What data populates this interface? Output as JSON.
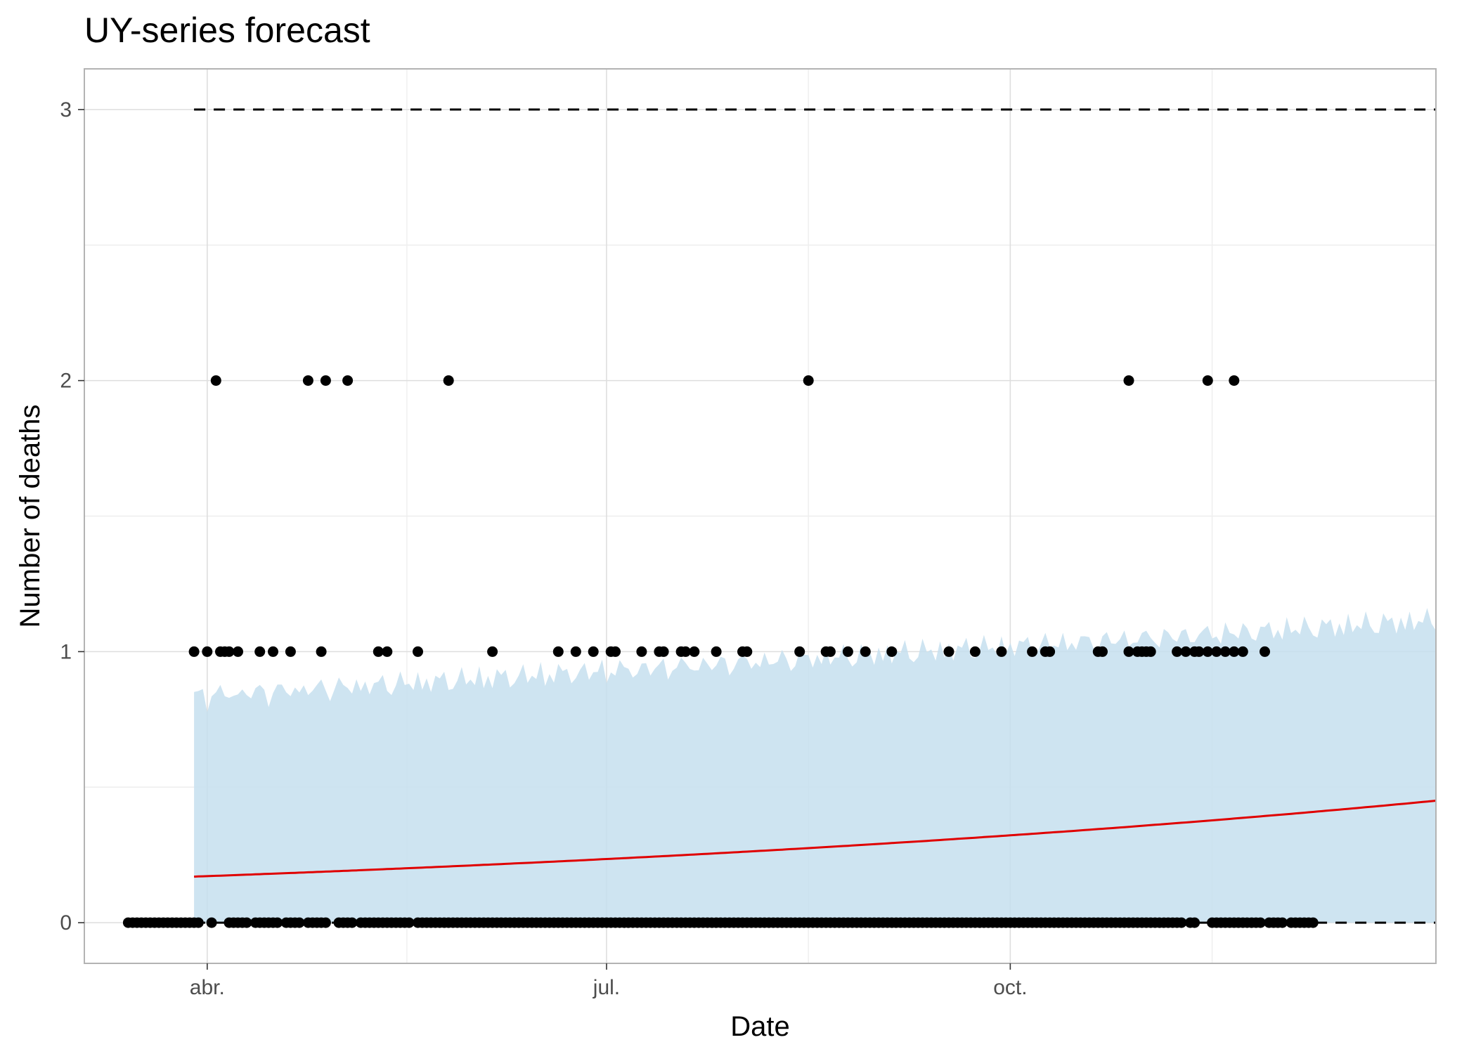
{
  "chart_data": {
    "type": "scatter",
    "title": "UY-series forecast",
    "xlabel": "Date",
    "ylabel": "Number of deaths",
    "x_ticks": [
      {
        "date": "2020-04-01",
        "label": "abr."
      },
      {
        "date": "2020-07-01",
        "label": "jul."
      },
      {
        "date": "2020-10-01",
        "label": "oct."
      }
    ],
    "y_ticks": [
      0,
      1,
      2,
      3
    ],
    "xlim": [
      "2020-03-04",
      "2021-01-06"
    ],
    "ylim": [
      -0.15,
      3.15
    ],
    "grid": true,
    "colors": {
      "points": "#000000",
      "forecast_line": "#e00000",
      "interval_fill": "#c5dfee",
      "bounds": "#000000",
      "panel_border": "#b3b3b3",
      "grid_major": "#dedede",
      "grid_minor": "#eeeeee"
    },
    "observed": {
      "zeros_dense_range": [
        "2020-03-14",
        "2020-03-30"
      ],
      "zero_dates": [
        "2020-04-02",
        "2020-04-06",
        "2020-04-07",
        "2020-04-08",
        "2020-04-09",
        "2020-04-10",
        "2020-04-12",
        "2020-04-13",
        "2020-04-14",
        "2020-04-15",
        "2020-04-16",
        "2020-04-17",
        "2020-04-19",
        "2020-04-20",
        "2020-04-21",
        "2020-04-22",
        "2020-04-24",
        "2020-04-25",
        "2020-04-26",
        "2020-04-27",
        "2020-04-28",
        "2020-05-01",
        "2020-05-02",
        "2020-05-03",
        "2020-05-04",
        "2020-05-06",
        "2020-05-07",
        "2020-05-08",
        "2020-05-09",
        "2020-05-10",
        "2020-05-11",
        "2020-05-12",
        "2020-05-13",
        "2020-05-14",
        "2020-05-15",
        "2020-05-16",
        "2020-05-17",
        "2020-05-19",
        "2020-05-20",
        "2020-05-21",
        "2020-05-22",
        "2020-05-23",
        "2020-05-24",
        "2020-05-25",
        "2020-05-26",
        "2020-05-27",
        "2020-05-28",
        "2020-05-29",
        "2020-05-30",
        "2020-05-31",
        "2020-06-01",
        "2020-06-02",
        "2020-06-03",
        "2020-06-04",
        "2020-06-05",
        "2020-06-06",
        "2020-06-07",
        "2020-06-08",
        "2020-06-09",
        "2020-06-10",
        "2020-06-11",
        "2020-06-12",
        "2020-06-13",
        "2020-06-14",
        "2020-06-15",
        "2020-06-16",
        "2020-06-17",
        "2020-06-18",
        "2020-06-19",
        "2020-06-20",
        "2020-06-21",
        "2020-06-22",
        "2020-06-23",
        "2020-06-24",
        "2020-06-25",
        "2020-06-26",
        "2020-06-27",
        "2020-06-28",
        "2020-06-29",
        "2020-06-30",
        "2020-07-01",
        "2020-07-02",
        "2020-07-03",
        "2020-07-04",
        "2020-07-05",
        "2020-07-06",
        "2020-07-07",
        "2020-07-08",
        "2020-07-09",
        "2020-07-10",
        "2020-07-11",
        "2020-07-12",
        "2020-07-13",
        "2020-07-14",
        "2020-07-15",
        "2020-07-16",
        "2020-07-17",
        "2020-07-18",
        "2020-07-19",
        "2020-07-20",
        "2020-07-21",
        "2020-07-22",
        "2020-07-23",
        "2020-07-24",
        "2020-07-25",
        "2020-07-26",
        "2020-07-27",
        "2020-07-28",
        "2020-07-29",
        "2020-07-30",
        "2020-07-31",
        "2020-08-01",
        "2020-08-02",
        "2020-08-03",
        "2020-08-04",
        "2020-08-05",
        "2020-08-06",
        "2020-08-07",
        "2020-08-08",
        "2020-08-09",
        "2020-08-10",
        "2020-08-11",
        "2020-08-12",
        "2020-08-13",
        "2020-08-14",
        "2020-08-15",
        "2020-08-16",
        "2020-08-17",
        "2020-08-18",
        "2020-08-19",
        "2020-08-20",
        "2020-08-21",
        "2020-08-22",
        "2020-08-23",
        "2020-08-24",
        "2020-08-25",
        "2020-08-26",
        "2020-08-27",
        "2020-08-28",
        "2020-08-29",
        "2020-08-30",
        "2020-08-31",
        "2020-09-01",
        "2020-09-02",
        "2020-09-03",
        "2020-09-04",
        "2020-09-05",
        "2020-09-06",
        "2020-09-07",
        "2020-09-08",
        "2020-09-09",
        "2020-09-10",
        "2020-09-11",
        "2020-09-12",
        "2020-09-13",
        "2020-09-14",
        "2020-09-15",
        "2020-09-16",
        "2020-09-17",
        "2020-09-18",
        "2020-09-19",
        "2020-09-20",
        "2020-09-21",
        "2020-09-22",
        "2020-09-23",
        "2020-09-24",
        "2020-09-25",
        "2020-09-26",
        "2020-09-27",
        "2020-09-28",
        "2020-09-29",
        "2020-09-30",
        "2020-10-01",
        "2020-10-02",
        "2020-10-03",
        "2020-10-04",
        "2020-10-05",
        "2020-10-06",
        "2020-10-07",
        "2020-10-08",
        "2020-10-09",
        "2020-10-10",
        "2020-10-11",
        "2020-10-12",
        "2020-10-13",
        "2020-10-14",
        "2020-10-15",
        "2020-10-16",
        "2020-10-17",
        "2020-10-18",
        "2020-10-19",
        "2020-10-20",
        "2020-10-21",
        "2020-10-22",
        "2020-10-23",
        "2020-10-24",
        "2020-10-25",
        "2020-10-26",
        "2020-10-27",
        "2020-10-28",
        "2020-10-29",
        "2020-10-30",
        "2020-10-31",
        "2020-11-01",
        "2020-11-02",
        "2020-11-03",
        "2020-11-04",
        "2020-11-05",
        "2020-11-06",
        "2020-11-07",
        "2020-11-08",
        "2020-11-09",
        "2020-11-11",
        "2020-11-12",
        "2020-11-16",
        "2020-11-17",
        "2020-11-18",
        "2020-11-19",
        "2020-11-20",
        "2020-11-21",
        "2020-11-22",
        "2020-11-23",
        "2020-11-24",
        "2020-11-25",
        "2020-11-26",
        "2020-11-27",
        "2020-11-29",
        "2020-11-30",
        "2020-12-01",
        "2020-12-02",
        "2020-12-04",
        "2020-12-05",
        "2020-12-06",
        "2020-12-07",
        "2020-12-08",
        "2020-12-09"
      ],
      "one_dates": [
        "2020-03-29",
        "2020-04-01",
        "2020-04-04",
        "2020-04-05",
        "2020-04-06",
        "2020-04-08",
        "2020-04-13",
        "2020-04-16",
        "2020-04-20",
        "2020-04-27",
        "2020-05-10",
        "2020-05-12",
        "2020-05-19",
        "2020-06-05",
        "2020-06-20",
        "2020-06-24",
        "2020-06-28",
        "2020-07-02",
        "2020-07-03",
        "2020-07-09",
        "2020-07-13",
        "2020-07-14",
        "2020-07-18",
        "2020-07-19",
        "2020-07-21",
        "2020-07-26",
        "2020-08-01",
        "2020-08-02",
        "2020-08-14",
        "2020-08-20",
        "2020-08-21",
        "2020-08-25",
        "2020-08-29",
        "2020-09-04",
        "2020-09-17",
        "2020-09-23",
        "2020-09-29",
        "2020-10-06",
        "2020-10-09",
        "2020-10-10",
        "2020-10-21",
        "2020-10-22",
        "2020-10-28",
        "2020-10-30",
        "2020-10-31",
        "2020-11-01",
        "2020-11-02",
        "2020-11-08",
        "2020-11-10",
        "2020-11-12",
        "2020-11-13",
        "2020-11-15",
        "2020-11-17",
        "2020-11-19",
        "2020-11-21",
        "2020-11-23",
        "2020-11-28"
      ],
      "two_dates": [
        "2020-04-03",
        "2020-04-24",
        "2020-04-28",
        "2020-05-03",
        "2020-05-26",
        "2020-08-16",
        "2020-10-28",
        "2020-11-15",
        "2020-11-21"
      ]
    },
    "forecast": {
      "start": "2020-03-29",
      "end": "2021-01-06",
      "line_start": 0.17,
      "line_end": 0.45,
      "interval_lower": 0,
      "interval_upper_start": 0.84,
      "interval_upper_end": 1.12
    },
    "bounds": {
      "start": "2020-03-29",
      "end": "2021-01-06",
      "lower": 0,
      "upper": 3
    }
  }
}
